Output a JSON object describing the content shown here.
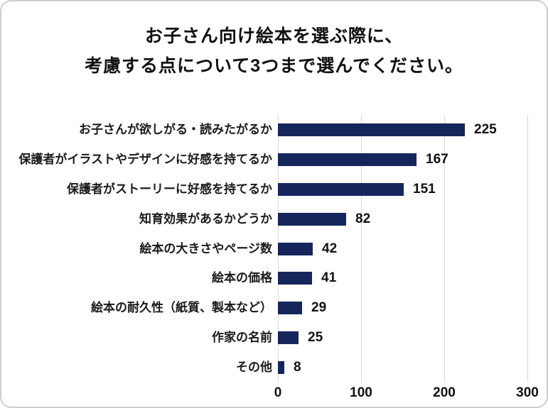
{
  "frame": {
    "background": "#FFFFFF",
    "border_color": "#CFCFCF"
  },
  "title": {
    "line1": "お子さん向け絵本を選ぶ際に、",
    "line2": "考慮する点について3つまで選んでください。"
  },
  "chart_data": {
    "type": "bar",
    "orientation": "horizontal",
    "title": "お子さん向け絵本を選ぶ際に、考慮する点について3つまで選んでください。",
    "categories": [
      "お子さんが欲しがる・読みたがるか",
      "保護者がイラストやデザインに好感を持てるか",
      "保護者がストーリーに好感を持てるか",
      "知育効果があるかどうか",
      "絵本の大きさやページ数",
      "絵本の価格",
      "絵本の耐久性（紙質、製本など）",
      "作家の名前",
      "その他"
    ],
    "values": [
      225,
      167,
      151,
      82,
      42,
      41,
      29,
      25,
      8
    ],
    "value_labels": [
      "225",
      "167",
      "151",
      "82",
      "42",
      "41",
      "29",
      "25",
      "8"
    ],
    "xlabel": "",
    "ylabel": "",
    "xlim": [
      0,
      300
    ],
    "xticks": [
      0,
      100,
      200,
      300
    ],
    "xtick_labels": [
      "0",
      "100",
      "200",
      "300"
    ],
    "grid": "vertical",
    "legend": "none",
    "bar_color": "#14265C",
    "gridline_color": "#D9D9D9",
    "text_color": "#111111"
  }
}
